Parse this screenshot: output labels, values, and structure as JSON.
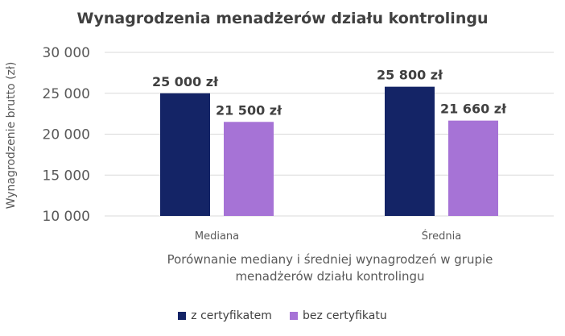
{
  "chart_data": {
    "type": "bar",
    "title": "Wynagrodzenia menadżerów działu kontrolingu",
    "xlabel_lines": [
      "Porównanie mediany i średniej wynagrodzeń w grupie",
      "menadżerów działu kontrolingu"
    ],
    "ylabel": "Wynagrodzenie brutto (zł)",
    "categories": [
      "Mediana",
      "Średnia"
    ],
    "series": [
      {
        "name": "z certyfikatem",
        "color": "#142466",
        "values": [
          25000,
          25800
        ],
        "labels": [
          "25 000 zł",
          "25 800 zł"
        ]
      },
      {
        "name": "bez certyfikatu",
        "color": "#a673d6",
        "values": [
          21500,
          21660
        ],
        "labels": [
          "21 500 zł",
          "21 660 zł"
        ]
      }
    ],
    "ylim": [
      10000,
      30000
    ],
    "yticks": [
      10000,
      15000,
      20000,
      25000,
      30000
    ],
    "ytick_labels": [
      "10 000",
      "15 000",
      "20 000",
      "25 000",
      "30 000"
    ],
    "grid": true,
    "legend_position": "bottom"
  }
}
